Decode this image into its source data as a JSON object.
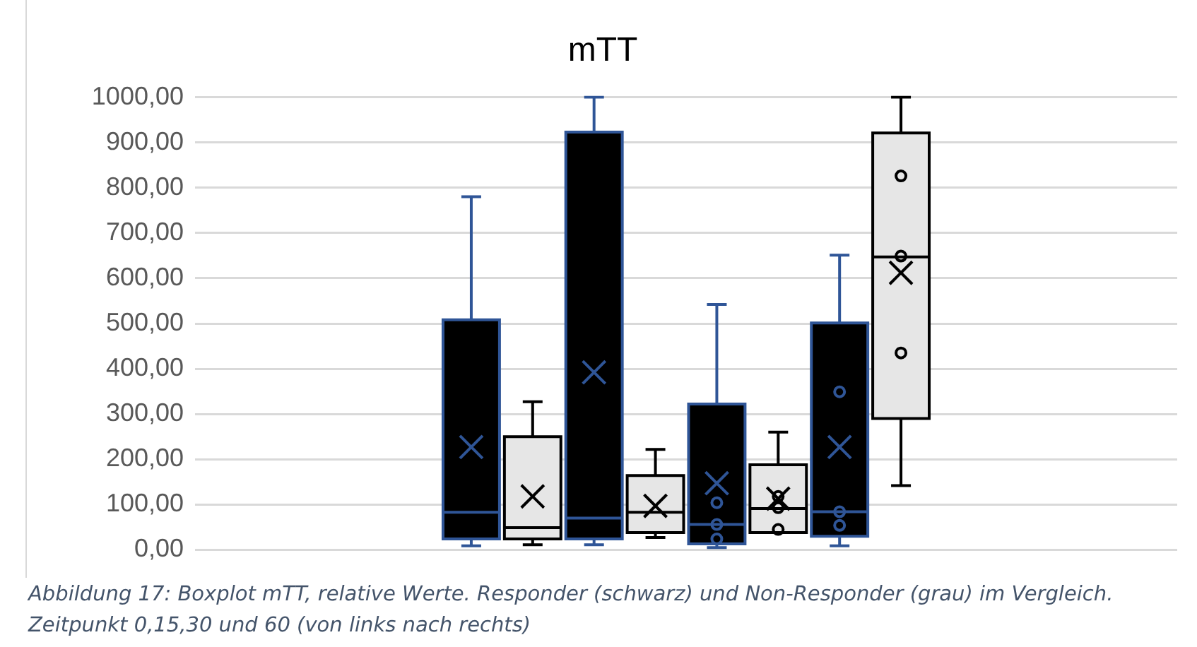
{
  "chart_data": {
    "type": "box",
    "title": "mTT",
    "categories": [
      null,
      null,
      null,
      null,
      null,
      null,
      null,
      null,
      null,
      null,
      null,
      null,
      null,
      null,
      null,
      null
    ],
    "colors": [
      null,
      null,
      null,
      null,
      "#000000",
      "#e6e6e6",
      "#000000",
      "#e6e6e6",
      "#000000",
      "#e6e6e6",
      "#000000",
      "#e6e6e6",
      null,
      null,
      null,
      null
    ],
    "boxes": [
      null,
      null,
      null,
      null,
      {
        "low": 9,
        "q1": 24,
        "median": 83,
        "q3": 508,
        "high": 780,
        "mean": 227
      },
      {
        "low": 11,
        "q1": 24,
        "median": 49,
        "q3": 250,
        "high": 327,
        "mean": 118
      },
      {
        "low": 11,
        "q1": 24,
        "median": 70,
        "q3": 923,
        "high": 1000,
        "mean": 392
      },
      {
        "low": 27,
        "q1": 38,
        "median": 83,
        "q3": 164,
        "high": 222,
        "mean": 97
      },
      {
        "low": 5,
        "q1": 13,
        "median": 56,
        "q3": 322,
        "high": 542,
        "mean": 147,
        "outliers": [
          104,
          56,
          24
        ]
      },
      {
        "low": 38,
        "q1": 38,
        "median": 91,
        "q3": 188,
        "high": 260,
        "mean": 113,
        "outliers": [
          118,
          93,
          45
        ]
      },
      {
        "low": 9,
        "q1": 30,
        "median": 84,
        "q3": 501,
        "high": 651,
        "mean": 227,
        "outliers": [
          349,
          84,
          54
        ]
      },
      {
        "low": 142,
        "q1": 290,
        "median": 647,
        "q3": 921,
        "high": 1000,
        "mean": 612,
        "outliers": [
          826,
          649,
          435
        ]
      },
      null,
      null,
      null,
      null
    ],
    "ylim": [
      0,
      1000
    ],
    "yticks": [
      {
        "value": 0,
        "label": "0,00"
      },
      {
        "value": 100,
        "label": "100,00"
      },
      {
        "value": 200,
        "label": "200,00"
      },
      {
        "value": 300,
        "label": "300,00"
      },
      {
        "value": 400,
        "label": "400,00"
      },
      {
        "value": 500,
        "label": "500,00"
      },
      {
        "value": 600,
        "label": "600,00"
      },
      {
        "value": 700,
        "label": "700,00"
      },
      {
        "value": 800,
        "label": "800,00"
      },
      {
        "value": 900,
        "label": "900,00"
      },
      {
        "value": 1000,
        "label": "1000,00"
      }
    ],
    "grid": "y",
    "legend": false,
    "tick_labels": "y",
    "annotations": [
      "Abbildung 17: Boxplot mTT, relative Werte. Responder (schwarz) und Non-Responder (grau) im Vergleich. Zeitpunkt 0,15,30 und 60 (von links nach rechts)"
    ]
  }
}
